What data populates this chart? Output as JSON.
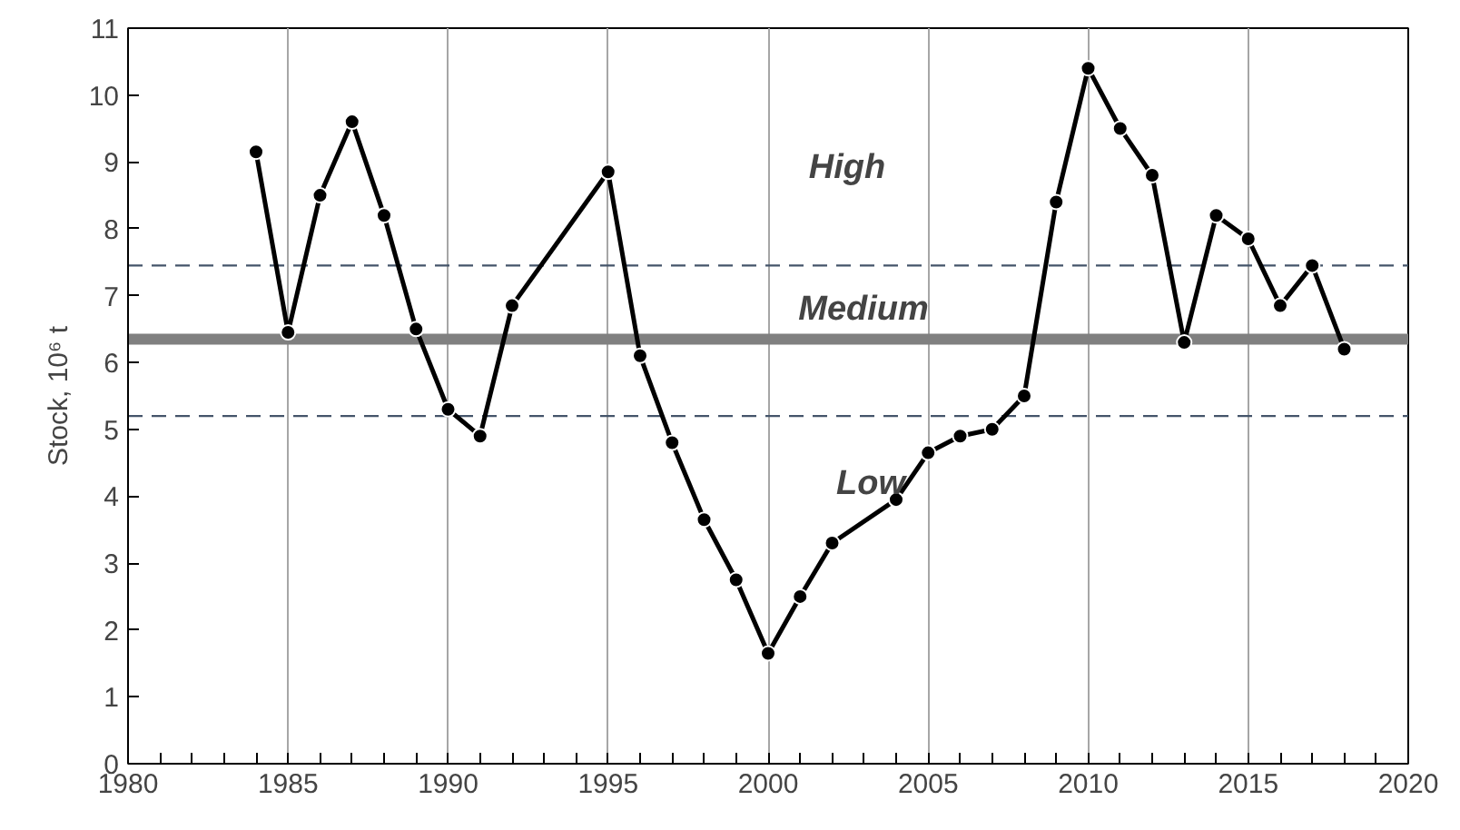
{
  "chart_data": {
    "type": "line",
    "ylabel": "Stock, 10⁶ t",
    "x": [
      1984,
      1985,
      1986,
      1987,
      1988,
      1989,
      1990,
      1991,
      1992,
      1995,
      1996,
      1997,
      1998,
      1999,
      2000,
      2001,
      2002,
      2004,
      2005,
      2006,
      2007,
      2008,
      2009,
      2010,
      2011,
      2012,
      2013,
      2014,
      2015,
      2016,
      2017,
      2018
    ],
    "series": [
      {
        "color": "#000000",
        "values": [
          9.15,
          6.45,
          8.5,
          9.6,
          8.2,
          6.5,
          5.3,
          4.9,
          6.85,
          8.85,
          6.1,
          4.8,
          3.65,
          2.75,
          1.65,
          2.5,
          3.3,
          3.95,
          4.65,
          4.9,
          5.0,
          5.5,
          8.4,
          10.4,
          9.5,
          8.8,
          6.3,
          8.2,
          7.85,
          6.85,
          7.45,
          6.2
        ]
      }
    ],
    "marker": "circle",
    "line_style": "solid",
    "grid": "x",
    "xlim": [
      1980,
      2020
    ],
    "xticks": [
      1980,
      1985,
      1990,
      1995,
      2000,
      2005,
      2010,
      2015,
      2020
    ],
    "ylim": [
      0,
      11
    ],
    "yticks": [
      0,
      1,
      2,
      3,
      4,
      5,
      6,
      7,
      8,
      9,
      10,
      11
    ],
    "ref_lines": [
      {
        "axis": "y",
        "value": 7.45,
        "color": "#44546a",
        "line_style": "dashed"
      },
      {
        "axis": "y",
        "value": 6.35,
        "color": "#808080",
        "line_style": "solid"
      },
      {
        "axis": "y",
        "value": 5.2,
        "color": "#44546a",
        "line_style": "dashed"
      }
    ],
    "annotations": [
      "High",
      "Medium",
      "Low"
    ]
  }
}
